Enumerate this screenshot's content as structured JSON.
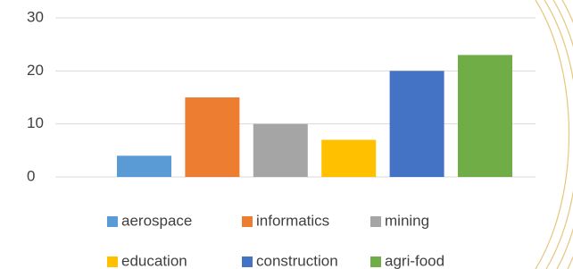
{
  "chart_data": {
    "type": "bar",
    "series": [
      {
        "name": "aerospace",
        "color": "#5b9bd5",
        "values": [
          4
        ]
      },
      {
        "name": "informatics",
        "color": "#ed7d31",
        "values": [
          15
        ]
      },
      {
        "name": "mining",
        "color": "#a5a5a5",
        "values": [
          10
        ]
      },
      {
        "name": "education",
        "color": "#ffc000",
        "values": [
          7
        ]
      },
      {
        "name": "construction",
        "color": "#4472c4",
        "values": [
          20
        ]
      },
      {
        "name": "agri-food",
        "color": "#70ad47",
        "values": [
          23
        ]
      }
    ],
    "ylim": [
      0,
      30
    ],
    "yticks": [
      0,
      10,
      20,
      30
    ],
    "grid": true,
    "legend": "bottom"
  }
}
